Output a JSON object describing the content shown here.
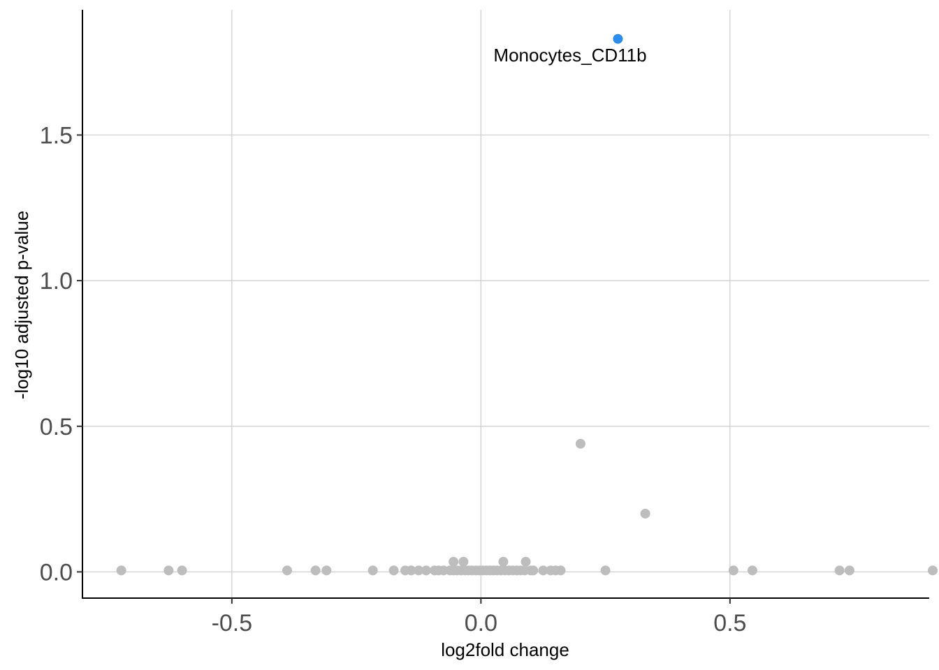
{
  "chart_data": {
    "type": "scatter",
    "title": "",
    "xlabel": "log2fold change",
    "ylabel": "-log10 adjusted p-value",
    "xlim": [
      -0.8,
      0.9
    ],
    "ylim": [
      -0.09,
      1.93
    ],
    "xticks": [
      -0.5,
      0.0,
      0.5
    ],
    "xtick_labels": [
      "-0.5",
      "0.0",
      "0.5"
    ],
    "yticks": [
      0.0,
      0.5,
      1.0,
      1.5
    ],
    "ytick_labels": [
      "0.0",
      "0.5",
      "1.0",
      "1.5"
    ],
    "grid": true,
    "colors": {
      "highlight": "#2b8cee",
      "default": "#bdbdbd"
    },
    "highlight": {
      "x": 0.275,
      "y": 1.83,
      "label": "Monocytes_CD11b"
    },
    "points": [
      {
        "x": -0.722,
        "y": 0.005
      },
      {
        "x": -0.627,
        "y": 0.005
      },
      {
        "x": -0.6,
        "y": 0.005
      },
      {
        "x": -0.389,
        "y": 0.005
      },
      {
        "x": -0.332,
        "y": 0.005
      },
      {
        "x": -0.31,
        "y": 0.005
      },
      {
        "x": -0.217,
        "y": 0.005
      },
      {
        "x": -0.175,
        "y": 0.005
      },
      {
        "x": -0.152,
        "y": 0.005
      },
      {
        "x": -0.14,
        "y": 0.005
      },
      {
        "x": -0.125,
        "y": 0.005
      },
      {
        "x": -0.11,
        "y": 0.005
      },
      {
        "x": -0.093,
        "y": 0.005
      },
      {
        "x": -0.085,
        "y": 0.005
      },
      {
        "x": -0.075,
        "y": 0.005
      },
      {
        "x": -0.062,
        "y": 0.005
      },
      {
        "x": -0.055,
        "y": 0.005
      },
      {
        "x": -0.048,
        "y": 0.005
      },
      {
        "x": -0.04,
        "y": 0.005
      },
      {
        "x": -0.032,
        "y": 0.005
      },
      {
        "x": -0.025,
        "y": 0.005
      },
      {
        "x": -0.018,
        "y": 0.005
      },
      {
        "x": -0.01,
        "y": 0.005
      },
      {
        "x": -0.003,
        "y": 0.005
      },
      {
        "x": 0.004,
        "y": 0.005
      },
      {
        "x": 0.011,
        "y": 0.005
      },
      {
        "x": 0.018,
        "y": 0.005
      },
      {
        "x": 0.025,
        "y": 0.005
      },
      {
        "x": 0.032,
        "y": 0.005
      },
      {
        "x": 0.04,
        "y": 0.005
      },
      {
        "x": 0.048,
        "y": 0.005
      },
      {
        "x": 0.056,
        "y": 0.005
      },
      {
        "x": 0.064,
        "y": 0.005
      },
      {
        "x": 0.072,
        "y": 0.005
      },
      {
        "x": 0.08,
        "y": 0.005
      },
      {
        "x": 0.088,
        "y": 0.005
      },
      {
        "x": 0.1,
        "y": 0.005
      },
      {
        "x": 0.105,
        "y": 0.005
      },
      {
        "x": 0.125,
        "y": 0.005
      },
      {
        "x": 0.14,
        "y": 0.005
      },
      {
        "x": 0.15,
        "y": 0.005
      },
      {
        "x": 0.16,
        "y": 0.005
      },
      {
        "x": -0.055,
        "y": 0.035
      },
      {
        "x": -0.035,
        "y": 0.035
      },
      {
        "x": 0.045,
        "y": 0.035
      },
      {
        "x": 0.09,
        "y": 0.035
      },
      {
        "x": 0.2,
        "y": 0.44
      },
      {
        "x": 0.33,
        "y": 0.2
      },
      {
        "x": 0.25,
        "y": 0.005
      },
      {
        "x": 0.507,
        "y": 0.005
      },
      {
        "x": 0.545,
        "y": 0.005
      },
      {
        "x": 0.72,
        "y": 0.005
      },
      {
        "x": 0.74,
        "y": 0.005
      },
      {
        "x": 0.907,
        "y": 0.005
      }
    ]
  }
}
